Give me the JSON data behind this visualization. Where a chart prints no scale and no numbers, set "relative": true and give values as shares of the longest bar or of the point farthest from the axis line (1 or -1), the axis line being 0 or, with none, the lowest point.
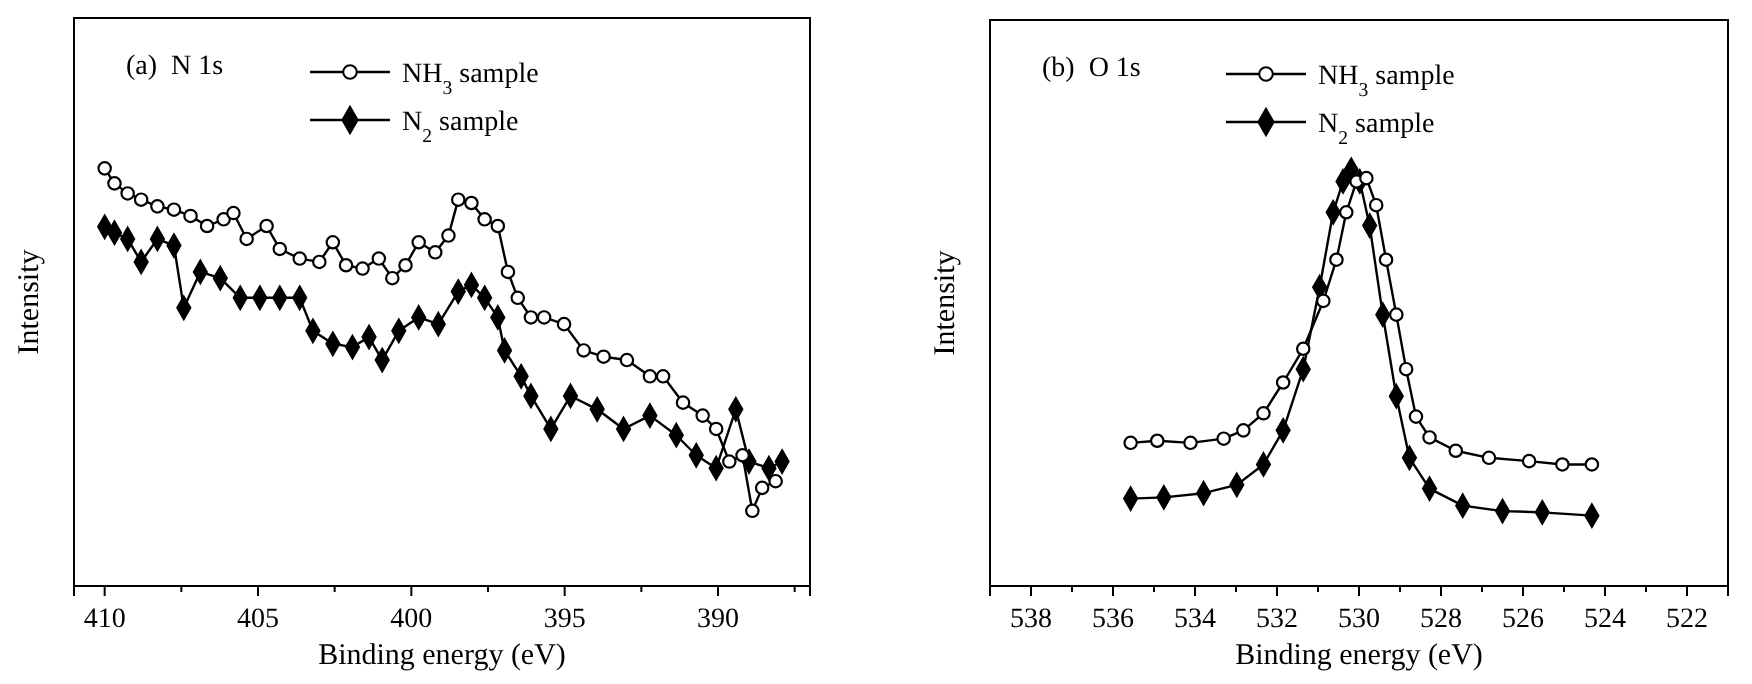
{
  "chart_data": [
    {
      "type": "line",
      "relative": true,
      "annotations": [
        "(a)  N 1s"
      ],
      "xlabel": "Binding energy (eV)",
      "ylabel": "Intensity",
      "xlim": [
        411,
        387
      ],
      "xticks": [
        410,
        {
          "value": 407.5,
          "label": null
        },
        405,
        {
          "value": 402.5,
          "label": null
        },
        400,
        {
          "value": 397.5,
          "label": null
        },
        395,
        {
          "value": 392.5,
          "label": null
        },
        390,
        {
          "value": 387.5,
          "label": null
        }
      ],
      "tick_labels": "x",
      "legend": "top",
      "line_style": "solid",
      "series": [
        {
          "name": "NH$_{3}$ sample",
          "color": "#000000",
          "marker": "circle",
          "x": [
            410.0,
            409.68,
            409.25,
            408.81,
            408.28,
            407.74,
            407.2,
            406.66,
            406.12,
            405.8,
            405.37,
            404.72,
            404.29,
            403.64,
            403.0,
            402.56,
            402.13,
            401.59,
            401.06,
            400.62,
            400.19,
            399.76,
            399.22,
            398.79,
            398.47,
            398.04,
            397.61,
            397.18,
            396.85,
            396.53,
            396.1,
            395.67,
            395.02,
            394.38,
            393.73,
            392.97,
            392.22,
            391.79,
            391.14,
            390.5,
            390.06,
            389.63,
            389.2,
            388.88,
            388.56,
            388.12
          ],
          "values": [
            1.0,
            0.964,
            0.94,
            0.925,
            0.909,
            0.901,
            0.886,
            0.862,
            0.878,
            0.893,
            0.831,
            0.862,
            0.807,
            0.784,
            0.776,
            0.823,
            0.768,
            0.76,
            0.784,
            0.737,
            0.768,
            0.823,
            0.799,
            0.839,
            0.925,
            0.917,
            0.878,
            0.862,
            0.752,
            0.69,
            0.643,
            0.643,
            0.627,
            0.564,
            0.549,
            0.541,
            0.502,
            0.502,
            0.439,
            0.408,
            0.376,
            0.298,
            0.313,
            0.18,
            0.235,
            0.251
          ]
        },
        {
          "name": "N$_{2}$ sample",
          "color": "#000000",
          "marker": "diamond",
          "x": [
            410.0,
            409.68,
            409.25,
            408.81,
            408.28,
            407.74,
            407.42,
            406.88,
            406.23,
            405.58,
            404.94,
            404.29,
            403.64,
            403.21,
            402.56,
            401.92,
            401.38,
            400.95,
            400.41,
            399.76,
            399.12,
            398.47,
            398.04,
            397.61,
            397.18,
            396.96,
            396.42,
            396.1,
            395.45,
            394.81,
            393.94,
            393.08,
            392.22,
            391.36,
            390.71,
            390.06,
            389.42,
            388.99,
            388.34,
            387.91
          ],
          "values": [
            0.86,
            0.846,
            0.831,
            0.776,
            0.831,
            0.815,
            0.666,
            0.752,
            0.737,
            0.69,
            0.69,
            0.69,
            0.69,
            0.611,
            0.58,
            0.572,
            0.596,
            0.541,
            0.611,
            0.643,
            0.627,
            0.705,
            0.721,
            0.69,
            0.643,
            0.564,
            0.502,
            0.455,
            0.376,
            0.455,
            0.423,
            0.376,
            0.408,
            0.361,
            0.313,
            0.282,
            0.423,
            0.298,
            0.282,
            0.298
          ]
        }
      ]
    },
    {
      "type": "line",
      "relative": true,
      "annotations": [
        "(b)  O 1s"
      ],
      "xlabel": "Binding energy (eV)",
      "ylabel": "Intensity",
      "xlim": [
        539,
        521
      ],
      "xticks": [
        538,
        {
          "value": 537,
          "label": null
        },
        536,
        {
          "value": 535,
          "label": null
        },
        534,
        {
          "value": 533,
          "label": null
        },
        532,
        {
          "value": 531,
          "label": null
        },
        530,
        {
          "value": 529,
          "label": null
        },
        528,
        {
          "value": 527,
          "label": null
        },
        526,
        {
          "value": 525,
          "label": null
        },
        524,
        {
          "value": 523,
          "label": null
        },
        522
      ],
      "tick_labels": "x",
      "legend": "top",
      "line_style": "solid",
      "series": [
        {
          "name": "NH$_{3}$ sample",
          "color": "#000000",
          "marker": "circle",
          "x": [
            535.57,
            534.92,
            534.11,
            533.3,
            532.82,
            532.33,
            531.85,
            531.36,
            530.87,
            530.55,
            530.31,
            530.06,
            529.82,
            529.58,
            529.34,
            529.09,
            528.85,
            528.61,
            528.28,
            527.64,
            526.83,
            525.85,
            525.04,
            524.32
          ],
          "values": [
            0.344,
            0.349,
            0.344,
            0.354,
            0.374,
            0.415,
            0.489,
            0.57,
            0.685,
            0.784,
            0.898,
            0.972,
            0.98,
            0.915,
            0.784,
            0.652,
            0.521,
            0.407,
            0.357,
            0.325,
            0.308,
            0.3,
            0.292,
            0.292
          ]
        },
        {
          "name": "N$_{2}$ sample",
          "color": "#000000",
          "marker": "diamond",
          "x": [
            535.57,
            534.76,
            533.79,
            532.98,
            532.33,
            531.85,
            531.36,
            530.96,
            530.63,
            530.39,
            530.19,
            529.98,
            529.74,
            529.42,
            529.09,
            528.77,
            528.28,
            527.47,
            526.5,
            525.53,
            524.32
          ],
          "values": [
            0.21,
            0.213,
            0.223,
            0.243,
            0.292,
            0.374,
            0.521,
            0.718,
            0.898,
            0.972,
            1.0,
            0.972,
            0.866,
            0.652,
            0.456,
            0.308,
            0.234,
            0.193,
            0.18,
            0.177,
            0.169
          ]
        }
      ]
    }
  ]
}
